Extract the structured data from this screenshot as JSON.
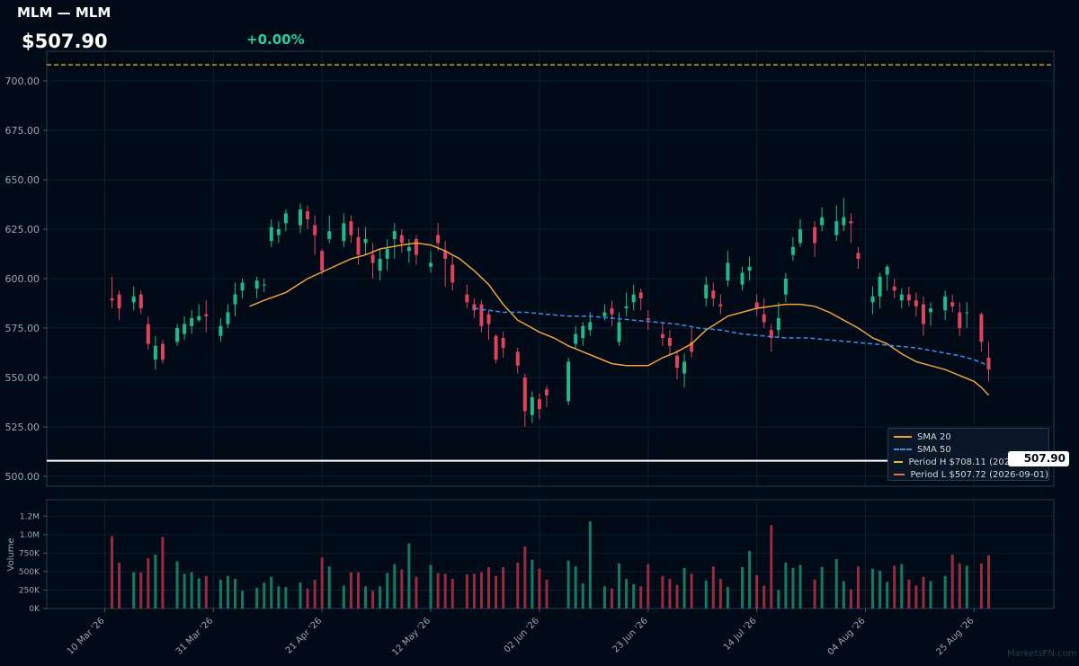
{
  "header": {
    "title": "MLM — MLM",
    "price": "$507.90",
    "change": "+0.00%"
  },
  "last_price_tag": "507.90",
  "watermark": "MarketsFN.com",
  "colors": {
    "up": "#1fb98a",
    "down": "#e0435b",
    "sma20": "#f0a23a",
    "sma50": "#3a8ee6",
    "period_high": "#e8c220",
    "period_low": "#d8714a",
    "background": "#000b17"
  },
  "legend": [
    {
      "label": "SMA 20",
      "color": "#f0a23a",
      "style": "solid"
    },
    {
      "label": "SMA 50",
      "color": "#3a8ee6",
      "style": "dashed"
    },
    {
      "label": "Period H $708.11 (2026-02-10)",
      "color": "#e8c220",
      "style": "dashed"
    },
    {
      "label": "Period L $507.72 (2026-09-01)",
      "color": "#d8714a",
      "style": "dashed"
    }
  ],
  "chart_data": {
    "type": "candlestick",
    "price_axis": {
      "ylim": [
        495,
        715
      ],
      "ticks": [
        "500.00",
        "525.00",
        "550.00",
        "575.00",
        "600.00",
        "625.00",
        "650.00",
        "675.00",
        "700.00"
      ]
    },
    "volume_axis": {
      "ylabel": "Volume",
      "ylim": [
        0,
        1400000
      ],
      "ticks": [
        "0K",
        "250K",
        "500K",
        "750K",
        "1.0M",
        "1.2M"
      ]
    },
    "x_ticks": [
      "10 Mar '26",
      "31 Mar '26",
      "21 Apr '26",
      "12 May '26",
      "02 Jun '26",
      "23 Jun '26",
      "14 Jul '26",
      "04 Aug '26",
      "25 Aug '26"
    ],
    "x_tick_days": [
      0,
      15,
      30,
      45,
      60,
      75,
      90,
      105,
      120
    ],
    "reference_lines": {
      "period_high": 708.11,
      "period_low": 507.72,
      "last_price": 507.9
    },
    "candles": [
      [
        1,
        590,
        589,
        601,
        585,
        980000
      ],
      [
        2,
        592,
        585,
        594,
        579,
        620000
      ],
      [
        4,
        588,
        591,
        596,
        584,
        490000
      ],
      [
        5,
        592,
        585,
        594,
        582,
        490000
      ],
      [
        6,
        577,
        567,
        581,
        564,
        680000
      ],
      [
        7,
        559,
        566,
        571,
        554,
        730000
      ],
      [
        8,
        567,
        559,
        569,
        557,
        970000
      ],
      [
        10,
        568,
        575,
        577,
        566,
        640000
      ],
      [
        11,
        572,
        577,
        581,
        569,
        470000
      ],
      [
        12,
        576,
        580,
        584,
        572,
        490000
      ],
      [
        13,
        579,
        581,
        587,
        578,
        410000
      ],
      [
        14,
        582,
        581,
        589,
        573,
        440000
      ],
      [
        16,
        571,
        576,
        580,
        568,
        390000
      ],
      [
        17,
        577,
        583,
        587,
        575,
        440000
      ],
      [
        18,
        587,
        592,
        598,
        581,
        400000
      ],
      [
        19,
        594,
        598,
        600,
        590,
        240000
      ],
      [
        21,
        595,
        599,
        601,
        590,
        280000
      ],
      [
        22,
        597,
        597,
        600,
        593,
        350000
      ],
      [
        23,
        619,
        626,
        630,
        616,
        430000
      ],
      [
        24,
        622,
        625,
        629,
        618,
        300000
      ],
      [
        25,
        628,
        633,
        635,
        624,
        290000
      ],
      [
        27,
        627,
        635,
        638,
        623,
        350000
      ],
      [
        28,
        634,
        630,
        637,
        625,
        270000
      ],
      [
        29,
        627,
        622,
        632,
        612,
        390000
      ],
      [
        30,
        614,
        604,
        615,
        602,
        690000
      ],
      [
        31,
        620,
        624,
        632,
        618,
        570000
      ],
      [
        33,
        619,
        628,
        633,
        616,
        310000
      ],
      [
        34,
        629,
        622,
        632,
        618,
        490000
      ],
      [
        35,
        621,
        612,
        626,
        607,
        490000
      ],
      [
        36,
        618,
        620,
        626,
        612,
        300000
      ],
      [
        37,
        612,
        608,
        618,
        600,
        240000
      ],
      [
        38,
        604,
        610,
        615,
        599,
        300000
      ],
      [
        39,
        610,
        615,
        620,
        604,
        480000
      ],
      [
        40,
        620,
        624,
        628,
        610,
        600000
      ],
      [
        41,
        622,
        618,
        625,
        613,
        530000
      ],
      [
        42,
        614,
        616,
        620,
        608,
        880000
      ],
      [
        43,
        620,
        612,
        622,
        607,
        430000
      ],
      [
        45,
        606,
        608,
        614,
        603,
        590000
      ],
      [
        46,
        622,
        618,
        628,
        614,
        480000
      ],
      [
        47,
        614,
        610,
        619,
        596,
        470000
      ],
      [
        48,
        607,
        598,
        612,
        594,
        400000
      ],
      [
        50,
        592,
        588,
        597,
        585,
        460000
      ],
      [
        51,
        587,
        584,
        590,
        580,
        470000
      ],
      [
        52,
        587,
        576,
        589,
        573,
        490000
      ],
      [
        53,
        582,
        577,
        584,
        569,
        560000
      ],
      [
        54,
        571,
        559,
        572,
        557,
        440000
      ],
      [
        55,
        570,
        565,
        573,
        560,
        560000
      ],
      [
        57,
        563,
        556,
        565,
        552,
        620000
      ],
      [
        58,
        550,
        533,
        552,
        525,
        840000
      ],
      [
        59,
        531,
        540,
        543,
        527,
        660000
      ],
      [
        60,
        539,
        534,
        542,
        529,
        540000
      ],
      [
        61,
        544,
        541,
        546,
        535,
        390000
      ],
      [
        64,
        538,
        558,
        560,
        536,
        650000
      ],
      [
        65,
        567,
        572,
        576,
        564,
        570000
      ],
      [
        66,
        570,
        576,
        578,
        566,
        340000
      ],
      [
        67,
        574,
        578,
        583,
        571,
        1180000
      ],
      [
        69,
        581,
        583,
        587,
        579,
        300000
      ],
      [
        70,
        585,
        582,
        589,
        576,
        270000
      ],
      [
        71,
        568,
        578,
        583,
        566,
        610000
      ],
      [
        72,
        585,
        586,
        593,
        581,
        400000
      ],
      [
        73,
        588,
        592,
        597,
        584,
        330000
      ],
      [
        74,
        593,
        590,
        595,
        584,
        300000
      ],
      [
        75,
        580,
        579,
        584,
        574,
        600000
      ],
      [
        77,
        572,
        570,
        578,
        566,
        440000
      ],
      [
        78,
        570,
        566,
        574,
        561,
        400000
      ],
      [
        79,
        561,
        555,
        564,
        549,
        320000
      ],
      [
        80,
        552,
        558,
        562,
        545,
        550000
      ],
      [
        81,
        568,
        563,
        575,
        560,
        470000
      ],
      [
        83,
        590,
        597,
        601,
        586,
        380000
      ],
      [
        84,
        594,
        590,
        598,
        586,
        570000
      ],
      [
        85,
        587,
        586,
        592,
        582,
        400000
      ],
      [
        86,
        599,
        608,
        614,
        596,
        290000
      ],
      [
        88,
        597,
        603,
        606,
        594,
        560000
      ],
      [
        89,
        604,
        606,
        611,
        599,
        780000
      ],
      [
        90,
        588,
        585,
        592,
        581,
        450000
      ],
      [
        91,
        582,
        578,
        590,
        575,
        310000
      ],
      [
        92,
        574,
        570,
        577,
        563,
        1130000
      ],
      [
        93,
        574,
        580,
        588,
        570,
        250000
      ],
      [
        94,
        592,
        600,
        603,
        588,
        620000
      ],
      [
        95,
        612,
        616,
        621,
        609,
        550000
      ],
      [
        96,
        618,
        625,
        630,
        616,
        590000
      ],
      [
        98,
        626,
        618,
        629,
        611,
        390000
      ],
      [
        99,
        627,
        631,
        636,
        624,
        560000
      ],
      [
        101,
        622,
        629,
        637,
        619,
        670000
      ],
      [
        102,
        627,
        631,
        641,
        624,
        370000
      ],
      [
        103,
        629,
        628,
        633,
        618,
        260000
      ],
      [
        104,
        613,
        610,
        616,
        605,
        570000
      ],
      [
        106,
        588,
        591,
        596,
        582,
        540000
      ],
      [
        107,
        591,
        601,
        603,
        585,
        510000
      ],
      [
        108,
        602,
        606,
        607,
        594,
        360000
      ],
      [
        109,
        596,
        594,
        600,
        590,
        580000
      ],
      [
        110,
        589,
        592,
        595,
        585,
        600000
      ],
      [
        111,
        592,
        589,
        596,
        586,
        390000
      ],
      [
        112,
        589,
        586,
        593,
        581,
        310000
      ],
      [
        113,
        587,
        577,
        591,
        571,
        430000
      ],
      [
        114,
        583,
        585,
        588,
        576,
        370000
      ],
      [
        116,
        584,
        591,
        594,
        579,
        440000
      ],
      [
        117,
        588,
        586,
        592,
        583,
        730000
      ],
      [
        118,
        583,
        575,
        588,
        571,
        610000
      ],
      [
        119,
        583,
        583,
        588,
        575,
        580000
      ],
      [
        121,
        582,
        568,
        583,
        563,
        610000
      ],
      [
        122,
        560,
        554,
        568,
        548,
        720000
      ]
    ],
    "sma20": [
      [
        20,
        586
      ],
      [
        22,
        589
      ],
      [
        25,
        593
      ],
      [
        28,
        600
      ],
      [
        31,
        605
      ],
      [
        34,
        610
      ],
      [
        36,
        612
      ],
      [
        38,
        615
      ],
      [
        41,
        617
      ],
      [
        43,
        618
      ],
      [
        45,
        617
      ],
      [
        47,
        614
      ],
      [
        49,
        610
      ],
      [
        51,
        604
      ],
      [
        53,
        597
      ],
      [
        55,
        587
      ],
      [
        57,
        579
      ],
      [
        60,
        573
      ],
      [
        62,
        570
      ],
      [
        64,
        566
      ],
      [
        66,
        563
      ],
      [
        68,
        560
      ],
      [
        70,
        557
      ],
      [
        72,
        556
      ],
      [
        75,
        556
      ],
      [
        77,
        560
      ],
      [
        79,
        563
      ],
      [
        81,
        567
      ],
      [
        83,
        574
      ],
      [
        86,
        581
      ],
      [
        88,
        583
      ],
      [
        90,
        585
      ],
      [
        92,
        586
      ],
      [
        94,
        587
      ],
      [
        96,
        587
      ],
      [
        98,
        586
      ],
      [
        100,
        583
      ],
      [
        102,
        579
      ],
      [
        104,
        575
      ],
      [
        106,
        570
      ],
      [
        108,
        567
      ],
      [
        110,
        562
      ],
      [
        112,
        558
      ],
      [
        114,
        556
      ],
      [
        116,
        554
      ],
      [
        118,
        551
      ],
      [
        120,
        548
      ],
      [
        121,
        545
      ],
      [
        122,
        541
      ]
    ],
    "sma50": [
      [
        51,
        585
      ],
      [
        53,
        584
      ],
      [
        55,
        583
      ],
      [
        58,
        583
      ],
      [
        61,
        582
      ],
      [
        64,
        581
      ],
      [
        67,
        581
      ],
      [
        70,
        580
      ],
      [
        73,
        579
      ],
      [
        76,
        578
      ],
      [
        79,
        577
      ],
      [
        82,
        575
      ],
      [
        85,
        574
      ],
      [
        88,
        572
      ],
      [
        91,
        571
      ],
      [
        94,
        570
      ],
      [
        97,
        570
      ],
      [
        100,
        569
      ],
      [
        103,
        568
      ],
      [
        106,
        567
      ],
      [
        109,
        566
      ],
      [
        112,
        565
      ],
      [
        115,
        563
      ],
      [
        118,
        561
      ],
      [
        120,
        559
      ],
      [
        122,
        556
      ]
    ]
  }
}
